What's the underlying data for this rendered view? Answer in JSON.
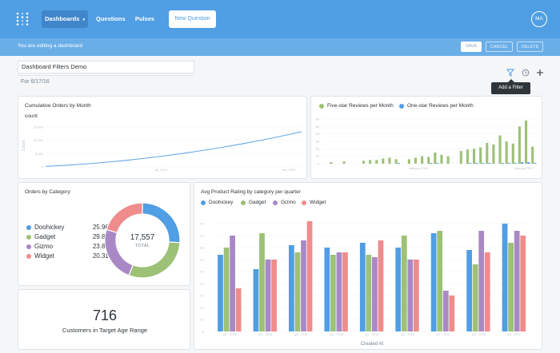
{
  "nav": {
    "dashboards": "Dashboards",
    "questions": "Questions",
    "pulses": "Pulses",
    "new_question": "New Question",
    "avatar": "MA"
  },
  "editbar": {
    "message": "You are editing a dashboard",
    "save": "SAVE",
    "cancel": "CANCEL",
    "delete": "DELETE"
  },
  "dashboard": {
    "title": "Dashboard Filters Demo",
    "description": "For 6/17/16",
    "tooltip": "Add a Filter"
  },
  "colors": {
    "blue": "#509ee3",
    "green": "#9cc177",
    "purple": "#a989c5",
    "red": "#ef8c8c",
    "nav": "#509ee3"
  },
  "cards": {
    "cumulative": {
      "title": "Cumulative Orders by Month",
      "ylabel": "count",
      "axis_title": "Count",
      "yticks": [
        "15,000",
        "10,000",
        "5,000",
        "0"
      ],
      "xticks": [
        "Jul, 2016",
        "Jan, 2017"
      ]
    },
    "reviews": {
      "legend": [
        "Five-star Reviews per Month",
        "One-star Reviews per Month"
      ],
      "yticks": [
        "60",
        "50",
        "40",
        "30",
        "20",
        "10",
        "0"
      ],
      "xticks": [
        "January 2016",
        "January 2017"
      ]
    },
    "category": {
      "title": "Orders by Category",
      "total": "17,557",
      "total_label": "TOTAL",
      "rows": [
        {
          "label": "Doohickey",
          "pct": "25.96%"
        },
        {
          "label": "Gadget",
          "pct": "29.89%"
        },
        {
          "label": "Gizmo",
          "pct": "23.85%"
        },
        {
          "label": "Widget",
          "pct": "20.31%"
        }
      ]
    },
    "customers": {
      "value": "716",
      "label": "Customers in Target Age Range"
    },
    "rating": {
      "title": "Avg Product Rating by category per quarter",
      "legend": [
        "Doohickey",
        "Gadget",
        "Gizmo",
        "Widget"
      ],
      "xlabel": "Created At",
      "yticks": [
        "4.5",
        "4.0",
        "3.5",
        "3.0",
        "2.5",
        "2.0",
        "1.5",
        "1.0",
        "0.5",
        "0"
      ],
      "xticks": [
        "Q1 - 2016",
        "Q2 - 2016",
        "Q3 - 2016",
        "Q4 - 2016",
        "Q1 - 2016",
        "Q2 - 2016",
        "Q3 - 2016",
        "Q4 - 2016",
        "Q1 - 2017"
      ]
    }
  },
  "chart_data": [
    {
      "type": "line",
      "title": "Cumulative Orders by Month",
      "ylabel": "count",
      "ylim": [
        0,
        15000
      ],
      "series": [
        {
          "name": "count",
          "values": [
            200,
            600,
            1100,
            1700,
            2400,
            3200,
            4100,
            5100,
            6200,
            7400,
            8700,
            10100,
            11600,
            13200
          ]
        }
      ]
    },
    {
      "type": "bar",
      "ylim": [
        0,
        60
      ],
      "series": [
        {
          "name": "Five-star Reviews per Month",
          "values": [
            0,
            2,
            0,
            3,
            0,
            0,
            4,
            5,
            5,
            7,
            8,
            6,
            0,
            6,
            8,
            10,
            9,
            15,
            12,
            10,
            0,
            17,
            19,
            20,
            22,
            28,
            26,
            38,
            30,
            27,
            50,
            58,
            23
          ]
        },
        {
          "name": "One-star Reviews per Month",
          "values": [
            0,
            0,
            0,
            0,
            0,
            0,
            0,
            0,
            0,
            0,
            0,
            1,
            0,
            0,
            0,
            0,
            1,
            1,
            0,
            0,
            0,
            0,
            1,
            1,
            1,
            1,
            0,
            1,
            1,
            1,
            2,
            2,
            1
          ]
        }
      ]
    },
    {
      "type": "pie",
      "title": "Orders by Category",
      "categories": [
        "Doohickey",
        "Gadget",
        "Gizmo",
        "Widget"
      ],
      "values": [
        25.96,
        29.89,
        23.85,
        20.31
      ]
    },
    {
      "type": "bar",
      "title": "Avg Product Rating by category per quarter",
      "xlabel": "Created At",
      "ylim": [
        0,
        5
      ],
      "categories": [
        "Q1 - 2016",
        "Q2 - 2016",
        "Q3 - 2016",
        "Q4 - 2016",
        "Q1 - 2016",
        "Q2 - 2016",
        "Q3 - 2016",
        "Q4 - 2016",
        "Q1 - 2017"
      ],
      "series": [
        {
          "name": "Doohickey",
          "values": [
            3.2,
            2.6,
            3.6,
            3.5,
            3.7,
            3.5,
            4.1,
            3.4,
            4.5
          ]
        },
        {
          "name": "Gadget",
          "values": [
            3.5,
            4.1,
            3.3,
            3.2,
            3.2,
            4.0,
            4.2,
            2.8,
            3.7
          ]
        },
        {
          "name": "Gizmo",
          "values": [
            4.0,
            3.0,
            3.8,
            3.3,
            3.1,
            3.0,
            1.7,
            4.2,
            4.2
          ]
        },
        {
          "name": "Widget",
          "values": [
            1.8,
            3.0,
            4.6,
            3.3,
            3.8,
            3.0,
            1.5,
            3.3,
            4.0
          ]
        }
      ]
    }
  ]
}
